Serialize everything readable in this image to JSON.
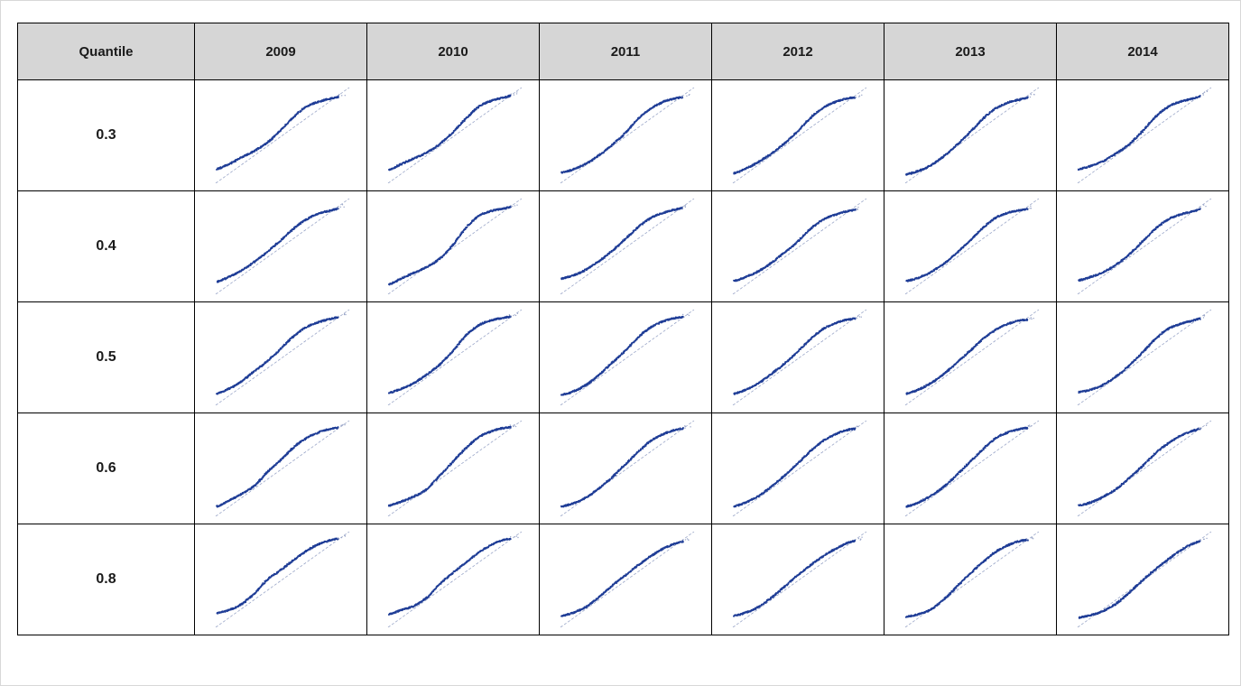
{
  "table": {
    "header": [
      "Quantile",
      "2009",
      "2010",
      "2011",
      "2012",
      "2013",
      "2014"
    ],
    "rows": [
      {
        "quantile": "0.3"
      },
      {
        "quantile": "0.4"
      },
      {
        "quantile": "0.5"
      },
      {
        "quantile": "0.6"
      },
      {
        "quantile": "0.8"
      }
    ]
  },
  "colors": {
    "points": "#1f3d96",
    "reference_line": "#9aa6c8",
    "header_bg": "#d6d6d6",
    "border": "#000000"
  },
  "chart_data": {
    "type": "scatter",
    "description_kind": "qq-plot grid",
    "years": [
      "2009",
      "2010",
      "2011",
      "2012",
      "2013",
      "2014"
    ],
    "quantiles": [
      "0.3",
      "0.4",
      "0.5",
      "0.6",
      "0.8"
    ],
    "x": [
      0.0,
      0.1,
      0.2,
      0.3,
      0.4,
      0.5,
      0.6,
      0.7,
      0.8,
      0.9,
      1.0
    ],
    "series": [
      {
        "quantile": "0.3",
        "year": "2009",
        "y": [
          0.1,
          0.16,
          0.24,
          0.32,
          0.42,
          0.56,
          0.72,
          0.84,
          0.9,
          0.94,
          0.97
        ]
      },
      {
        "quantile": "0.3",
        "year": "2010",
        "y": [
          0.09,
          0.16,
          0.23,
          0.3,
          0.4,
          0.54,
          0.7,
          0.84,
          0.91,
          0.95,
          0.99
        ]
      },
      {
        "quantile": "0.3",
        "year": "2011",
        "y": [
          0.06,
          0.1,
          0.17,
          0.27,
          0.39,
          0.53,
          0.7,
          0.82,
          0.9,
          0.94,
          0.96
        ]
      },
      {
        "quantile": "0.3",
        "year": "2012",
        "y": [
          0.05,
          0.11,
          0.19,
          0.29,
          0.41,
          0.55,
          0.71,
          0.83,
          0.9,
          0.94,
          0.95
        ]
      },
      {
        "quantile": "0.3",
        "year": "2013",
        "y": [
          0.04,
          0.08,
          0.15,
          0.26,
          0.39,
          0.54,
          0.7,
          0.82,
          0.89,
          0.93,
          0.96
        ]
      },
      {
        "quantile": "0.3",
        "year": "2014",
        "y": [
          0.1,
          0.14,
          0.2,
          0.29,
          0.4,
          0.55,
          0.72,
          0.84,
          0.9,
          0.94,
          0.99
        ]
      },
      {
        "quantile": "0.4",
        "year": "2009",
        "y": [
          0.08,
          0.14,
          0.22,
          0.32,
          0.44,
          0.57,
          0.71,
          0.82,
          0.89,
          0.93,
          0.97
        ]
      },
      {
        "quantile": "0.4",
        "year": "2010",
        "y": [
          0.05,
          0.12,
          0.19,
          0.26,
          0.36,
          0.52,
          0.72,
          0.86,
          0.92,
          0.95,
          0.99
        ]
      },
      {
        "quantile": "0.4",
        "year": "2011",
        "y": [
          0.12,
          0.16,
          0.23,
          0.33,
          0.45,
          0.59,
          0.73,
          0.84,
          0.9,
          0.94,
          0.97
        ]
      },
      {
        "quantile": "0.4",
        "year": "2012",
        "y": [
          0.09,
          0.14,
          0.21,
          0.31,
          0.43,
          0.56,
          0.71,
          0.82,
          0.88,
          0.92,
          0.94
        ]
      },
      {
        "quantile": "0.4",
        "year": "2013",
        "y": [
          0.09,
          0.13,
          0.2,
          0.3,
          0.43,
          0.57,
          0.72,
          0.84,
          0.9,
          0.93,
          0.95
        ]
      },
      {
        "quantile": "0.4",
        "year": "2014",
        "y": [
          0.1,
          0.14,
          0.2,
          0.29,
          0.41,
          0.56,
          0.71,
          0.82,
          0.88,
          0.92,
          0.97
        ]
      },
      {
        "quantile": "0.5",
        "year": "2009",
        "y": [
          0.07,
          0.13,
          0.22,
          0.34,
          0.46,
          0.6,
          0.75,
          0.86,
          0.92,
          0.96,
          0.99
        ]
      },
      {
        "quantile": "0.5",
        "year": "2010",
        "y": [
          0.08,
          0.13,
          0.2,
          0.3,
          0.42,
          0.58,
          0.76,
          0.88,
          0.94,
          0.97,
          0.99
        ]
      },
      {
        "quantile": "0.5",
        "year": "2011",
        "y": [
          0.06,
          0.1,
          0.18,
          0.3,
          0.44,
          0.58,
          0.74,
          0.86,
          0.93,
          0.97,
          0.98
        ]
      },
      {
        "quantile": "0.5",
        "year": "2012",
        "y": [
          0.07,
          0.12,
          0.2,
          0.31,
          0.43,
          0.57,
          0.72,
          0.84,
          0.91,
          0.95,
          0.96
        ]
      },
      {
        "quantile": "0.5",
        "year": "2013",
        "y": [
          0.07,
          0.12,
          0.2,
          0.31,
          0.44,
          0.58,
          0.72,
          0.83,
          0.9,
          0.94,
          0.94
        ]
      },
      {
        "quantile": "0.5",
        "year": "2014",
        "y": [
          0.09,
          0.12,
          0.18,
          0.28,
          0.41,
          0.56,
          0.72,
          0.84,
          0.9,
          0.94,
          0.98
        ]
      },
      {
        "quantile": "0.6",
        "year": "2009",
        "y": [
          0.05,
          0.12,
          0.2,
          0.3,
          0.46,
          0.6,
          0.75,
          0.86,
          0.93,
          0.97,
          0.99
        ]
      },
      {
        "quantile": "0.6",
        "year": "2010",
        "y": [
          0.06,
          0.11,
          0.17,
          0.26,
          0.42,
          0.58,
          0.74,
          0.87,
          0.94,
          0.98,
          0.99
        ]
      },
      {
        "quantile": "0.6",
        "year": "2011",
        "y": [
          0.05,
          0.09,
          0.16,
          0.27,
          0.4,
          0.55,
          0.7,
          0.83,
          0.91,
          0.96,
          0.98
        ]
      },
      {
        "quantile": "0.6",
        "year": "2012",
        "y": [
          0.05,
          0.1,
          0.18,
          0.29,
          0.42,
          0.56,
          0.71,
          0.83,
          0.91,
          0.96,
          0.97
        ]
      },
      {
        "quantile": "0.6",
        "year": "2013",
        "y": [
          0.05,
          0.1,
          0.18,
          0.29,
          0.43,
          0.58,
          0.73,
          0.86,
          0.93,
          0.97,
          0.98
        ]
      },
      {
        "quantile": "0.6",
        "year": "2014",
        "y": [
          0.06,
          0.1,
          0.17,
          0.26,
          0.39,
          0.53,
          0.68,
          0.8,
          0.89,
          0.95,
          0.99
        ]
      },
      {
        "quantile": "0.8",
        "year": "2009",
        "y": [
          0.1,
          0.14,
          0.21,
          0.34,
          0.5,
          0.61,
          0.73,
          0.84,
          0.92,
          0.97,
          0.99
        ]
      },
      {
        "quantile": "0.8",
        "year": "2010",
        "y": [
          0.09,
          0.14,
          0.19,
          0.29,
          0.45,
          0.58,
          0.7,
          0.82,
          0.91,
          0.97,
          0.99
        ]
      },
      {
        "quantile": "0.8",
        "year": "2011",
        "y": [
          0.07,
          0.11,
          0.18,
          0.3,
          0.43,
          0.55,
          0.67,
          0.78,
          0.87,
          0.93,
          0.96
        ]
      },
      {
        "quantile": "0.8",
        "year": "2012",
        "y": [
          0.07,
          0.11,
          0.18,
          0.29,
          0.42,
          0.55,
          0.67,
          0.78,
          0.87,
          0.94,
          0.97
        ]
      },
      {
        "quantile": "0.8",
        "year": "2013",
        "y": [
          0.06,
          0.09,
          0.15,
          0.27,
          0.42,
          0.57,
          0.71,
          0.83,
          0.91,
          0.96,
          0.97
        ]
      },
      {
        "quantile": "0.8",
        "year": "2014",
        "y": [
          0.05,
          0.08,
          0.13,
          0.22,
          0.35,
          0.49,
          0.62,
          0.74,
          0.85,
          0.93,
          0.97
        ]
      }
    ],
    "reference_line": {
      "from": [
        0,
        0
      ],
      "to": [
        1,
        1
      ],
      "style": "dashed"
    },
    "title": "",
    "xlabel": "",
    "ylabel": "",
    "xlim": [
      0,
      1
    ],
    "ylim": [
      0,
      1
    ],
    "grid": false
  }
}
